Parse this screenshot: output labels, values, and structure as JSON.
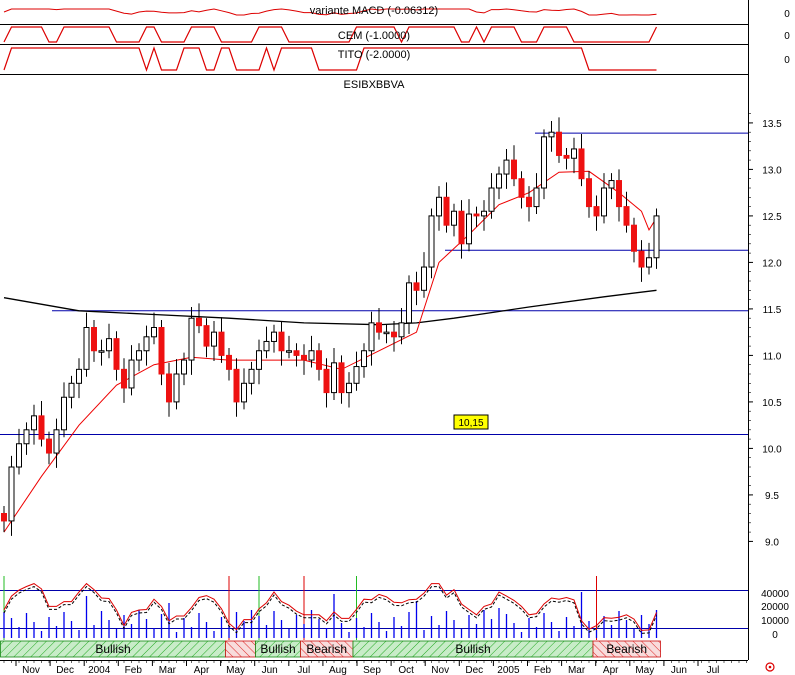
{
  "panels": {
    "macd_label": "variante MACD (-0.06312)",
    "macd_axis": "0",
    "cem_label": "CEM (-1.0000)",
    "cem_axis": "0",
    "tito_label": "TITO (-2.0000)",
    "tito_axis": "0"
  },
  "colors": {
    "candle_up": "#ffffff",
    "candle_down": "#ee1111",
    "moving_average": "#ee0000",
    "long_average": "#000000",
    "levels": "#0000aa",
    "volume": "#0000ee",
    "bullish_fill": "#c8ecc8",
    "bearish_fill": "#f4c8c8",
    "badge": "#ffff00"
  },
  "chart_data": {
    "type": "candlestick",
    "title": "ESIBXBBVA",
    "y_axis": {
      "ticks": [
        9.0,
        9.5,
        10.0,
        10.5,
        11.0,
        11.5,
        12.0,
        12.5,
        13.0,
        13.5
      ],
      "tick_labels": [
        "9.0",
        "9.5",
        "10.0",
        "10.5",
        "11.0",
        "11.5",
        "12.0",
        "12.5",
        "13.0",
        "13.5"
      ],
      "range": [
        8.8,
        13.8
      ]
    },
    "x_axis": {
      "months": [
        "Nov",
        "Dec",
        "2004",
        "Feb",
        "Mar",
        "Apr",
        "May",
        "Jun",
        "Jul",
        "Aug",
        "Sep",
        "Oct",
        "Nov",
        "Dec",
        "2005",
        "Feb",
        "Mar",
        "Apr",
        "May",
        "Jun",
        "Jul"
      ]
    },
    "levels": [
      13.39,
      12.13,
      11.48,
      10.15
    ],
    "level_badge": "10,15",
    "closes": [
      9.22,
      9.8,
      10.05,
      10.2,
      10.35,
      10.1,
      9.95,
      10.2,
      10.55,
      10.7,
      10.85,
      11.3,
      11.05,
      11.05,
      11.18,
      10.85,
      10.65,
      10.95,
      11.05,
      11.2,
      11.3,
      10.8,
      10.5,
      10.8,
      10.95,
      11.4,
      11.32,
      11.1,
      11.25,
      11.0,
      10.85,
      10.5,
      10.7,
      10.85,
      11.05,
      11.15,
      11.25,
      11.05,
      11.05,
      11.0,
      10.95,
      11.05,
      10.85,
      10.6,
      10.92,
      10.6,
      10.7,
      10.88,
      11.05,
      11.35,
      11.25,
      11.25,
      11.2,
      11.35,
      11.78,
      11.7,
      11.95,
      12.5,
      12.7,
      12.4,
      12.55,
      12.2,
      12.52,
      12.5,
      12.55,
      12.8,
      12.95,
      13.1,
      12.9,
      12.7,
      12.6,
      12.8,
      13.35,
      13.4,
      13.15,
      13.12,
      13.22,
      12.9,
      12.6,
      12.5,
      12.8,
      12.88,
      12.6,
      12.4,
      12.12,
      11.95,
      12.05,
      12.5
    ],
    "moving_average_points": [
      [
        0,
        9.1
      ],
      [
        5,
        9.7
      ],
      [
        10,
        10.25
      ],
      [
        15,
        10.68
      ],
      [
        20,
        10.9
      ],
      [
        25,
        10.98
      ],
      [
        30,
        10.95
      ],
      [
        35,
        10.95
      ],
      [
        40,
        10.95
      ],
      [
        45,
        10.85
      ],
      [
        50,
        11.05
      ],
      [
        55,
        11.25
      ],
      [
        58,
        12.0
      ],
      [
        62,
        12.3
      ],
      [
        66,
        12.62
      ],
      [
        70,
        12.75
      ],
      [
        74,
        12.97
      ],
      [
        78,
        12.98
      ],
      [
        82,
        12.75
      ],
      [
        85,
        12.55
      ],
      [
        86,
        12.35
      ],
      [
        87,
        12.48
      ]
    ],
    "long_average_points": [
      [
        0,
        11.62
      ],
      [
        10,
        11.48
      ],
      [
        20,
        11.44
      ],
      [
        30,
        11.4
      ],
      [
        40,
        11.35
      ],
      [
        50,
        11.33
      ],
      [
        55,
        11.35
      ],
      [
        60,
        11.4
      ],
      [
        70,
        11.52
      ],
      [
        80,
        11.63
      ],
      [
        87,
        11.7
      ]
    ],
    "volume_axis": [
      "40000",
      "20000",
      "10000",
      "0"
    ],
    "trend_segments": [
      {
        "label": "Bullish",
        "kind": "bullish",
        "start": 0,
        "end": 30
      },
      {
        "label": "",
        "kind": "bearish",
        "start": 30,
        "end": 34
      },
      {
        "label": "Bullish",
        "kind": "bullish",
        "start": 34,
        "end": 40
      },
      {
        "label": "Bearish",
        "kind": "bearish",
        "start": 40,
        "end": 47
      },
      {
        "label": "Bullish",
        "kind": "bullish",
        "start": 47,
        "end": 79
      },
      {
        "label": "Bearish",
        "kind": "bearish",
        "start": 79,
        "end": 88
      }
    ]
  }
}
